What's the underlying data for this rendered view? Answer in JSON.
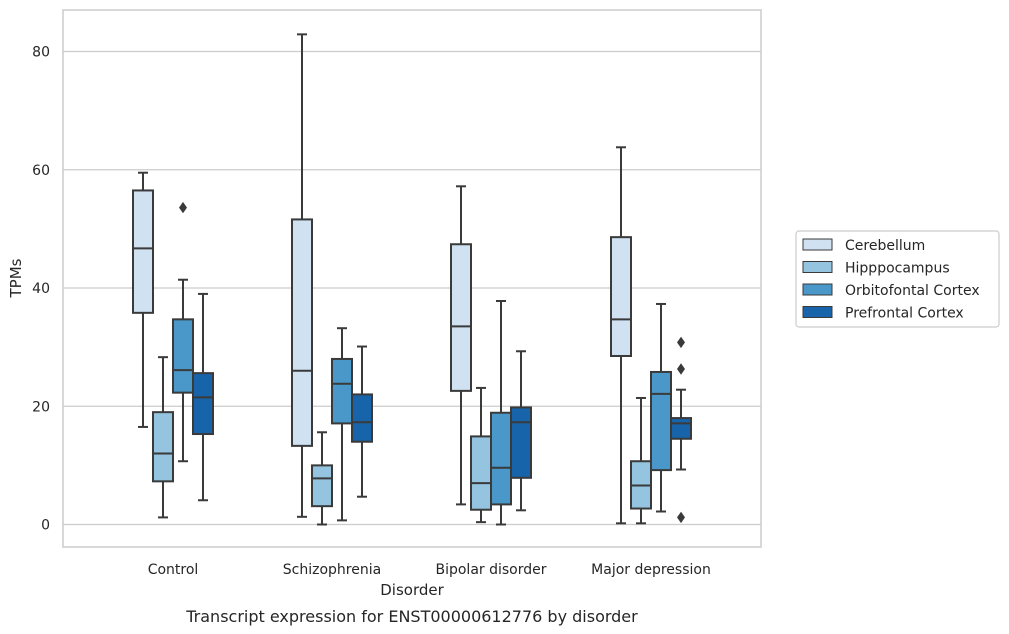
{
  "chart_data": {
    "type": "box",
    "xlabel": "Disorder",
    "ylabel": "TPMs",
    "caption": "Transcript expression for ENST00000612776 by disorder",
    "ylim": [
      -4,
      87
    ],
    "yticks": [
      0,
      20,
      40,
      60,
      80
    ],
    "grid": "horizontal",
    "legend_position": "right",
    "categories": [
      "Control",
      "Schizophrenia",
      "Bipolar disorder",
      "Major depression"
    ],
    "series": [
      {
        "name": "Cerebellum",
        "color": "#d0e1f2",
        "boxes": [
          {
            "whisker_low": 16.5,
            "q1": 35.8,
            "median": 46.7,
            "q3": 56.5,
            "whisker_high": 59.5,
            "outliers": []
          },
          {
            "whisker_low": 1.3,
            "q1": 13.3,
            "median": 26.0,
            "q3": 51.6,
            "whisker_high": 82.9,
            "outliers": []
          },
          {
            "whisker_low": 3.4,
            "q1": 22.6,
            "median": 33.5,
            "q3": 47.4,
            "whisker_high": 57.2,
            "outliers": []
          },
          {
            "whisker_low": 0.2,
            "q1": 28.5,
            "median": 34.7,
            "q3": 48.6,
            "whisker_high": 63.8,
            "outliers": []
          }
        ]
      },
      {
        "name": "Hipppocampus",
        "color": "#94c4df",
        "boxes": [
          {
            "whisker_low": 1.2,
            "q1": 7.3,
            "median": 12.0,
            "q3": 19.0,
            "whisker_high": 28.3,
            "outliers": []
          },
          {
            "whisker_low": 0.0,
            "q1": 3.1,
            "median": 7.8,
            "q3": 10.0,
            "whisker_high": 15.6,
            "outliers": []
          },
          {
            "whisker_low": 0.4,
            "q1": 2.5,
            "median": 7.0,
            "q3": 14.9,
            "whisker_high": 23.1,
            "outliers": []
          },
          {
            "whisker_low": 0.2,
            "q1": 2.7,
            "median": 6.6,
            "q3": 10.7,
            "whisker_high": 21.4,
            "outliers": []
          }
        ]
      },
      {
        "name": "Orbitofontal Cortex",
        "color": "#4a98c9",
        "boxes": [
          {
            "whisker_low": 10.7,
            "q1": 22.3,
            "median": 26.1,
            "q3": 34.7,
            "whisker_high": 41.4,
            "outliers": [
              53.6
            ]
          },
          {
            "whisker_low": 0.7,
            "q1": 17.1,
            "median": 23.8,
            "q3": 28.0,
            "whisker_high": 33.2,
            "outliers": []
          },
          {
            "whisker_low": 0.0,
            "q1": 3.4,
            "median": 9.6,
            "q3": 18.9,
            "whisker_high": 37.8,
            "outliers": []
          },
          {
            "whisker_low": 2.2,
            "q1": 9.2,
            "median": 22.1,
            "q3": 25.8,
            "whisker_high": 37.3,
            "outliers": []
          }
        ]
      },
      {
        "name": "Prefrontal Cortex",
        "color": "#1764ab",
        "boxes": [
          {
            "whisker_low": 4.1,
            "q1": 15.3,
            "median": 21.5,
            "q3": 25.6,
            "whisker_high": 39.0,
            "outliers": []
          },
          {
            "whisker_low": 4.7,
            "q1": 14.0,
            "median": 17.3,
            "q3": 22.0,
            "whisker_high": 30.1,
            "outliers": []
          },
          {
            "whisker_low": 2.4,
            "q1": 7.9,
            "median": 17.3,
            "q3": 19.8,
            "whisker_high": 29.3,
            "outliers": []
          },
          {
            "whisker_low": 9.3,
            "q1": 14.5,
            "median": 17.1,
            "q3": 18.0,
            "whisker_high": 22.8,
            "outliers": [
              1.2,
              26.3,
              30.8
            ]
          }
        ]
      }
    ]
  }
}
